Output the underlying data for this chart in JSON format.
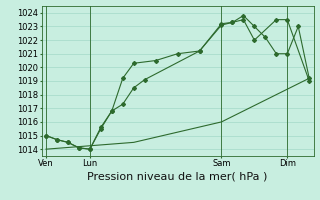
{
  "title": "Pression niveau de la mer( hPa )",
  "bg_color": "#c8eee0",
  "grid_color": "#aaddcc",
  "line_color": "#2d6a2d",
  "ylim": [
    1013.5,
    1024.5
  ],
  "yticks": [
    1014,
    1015,
    1016,
    1017,
    1018,
    1019,
    1020,
    1021,
    1022,
    1023,
    1024
  ],
  "xtick_labels": [
    "Ven",
    "Lun",
    "Sam",
    "Dim"
  ],
  "xtick_positions": [
    0,
    2,
    8,
    11
  ],
  "vline_positions": [
    0,
    2,
    8,
    11
  ],
  "line1_x": [
    0,
    0.5,
    1.0,
    1.5,
    2.0,
    2.5,
    3.0,
    3.5,
    4.0,
    5.0,
    6.0,
    7.0,
    8.0,
    8.5,
    9.0,
    9.5,
    10.0,
    10.5,
    11.0,
    11.5,
    12.0
  ],
  "line1_y": [
    1015.0,
    1014.7,
    1014.5,
    1014.1,
    1014.0,
    1015.6,
    1016.8,
    1019.2,
    1020.3,
    1020.5,
    1021.0,
    1021.2,
    1023.1,
    1023.3,
    1023.8,
    1023.0,
    1022.2,
    1021.0,
    1021.0,
    1023.0,
    1019.2
  ],
  "line2_x": [
    0,
    0.5,
    1.0,
    1.5,
    2.0,
    2.5,
    3.0,
    3.5,
    4.0,
    4.5,
    7.0,
    8.0,
    8.5,
    9.0,
    9.5,
    10.5,
    11.0,
    12.0
  ],
  "line2_y": [
    1015.0,
    1014.7,
    1014.5,
    1014.1,
    1014.0,
    1015.5,
    1016.8,
    1017.3,
    1018.5,
    1019.1,
    1021.2,
    1023.2,
    1023.3,
    1023.5,
    1022.0,
    1023.5,
    1023.5,
    1019.0
  ],
  "line3_x": [
    0,
    4,
    8,
    12
  ],
  "line3_y": [
    1014.0,
    1014.5,
    1016.0,
    1019.2
  ],
  "xlabel_fontsize": 8,
  "tick_fontsize": 6,
  "figsize": [
    3.2,
    2.0
  ],
  "dpi": 100
}
